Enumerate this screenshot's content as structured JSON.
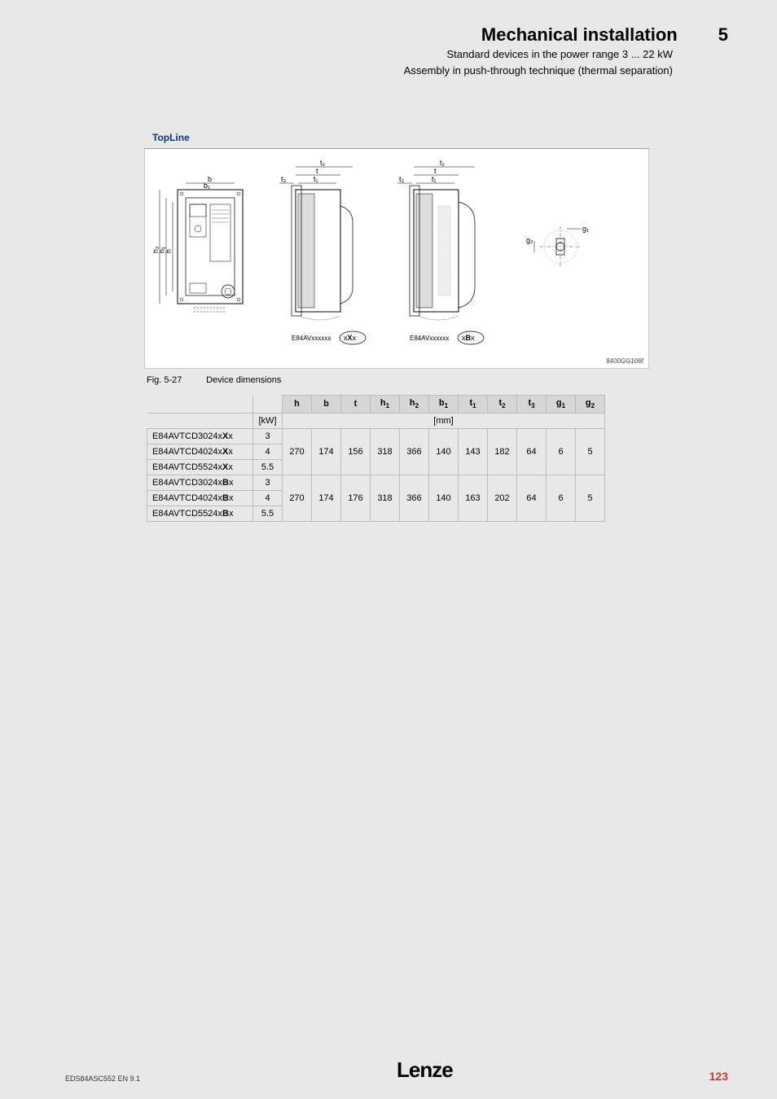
{
  "header": {
    "title": "Mechanical installation",
    "chapter": "5",
    "subtitle1": "Standard devices in the power range 3 ... 22 kW",
    "subtitle2": "Assembly in push-through technique (thermal separation)"
  },
  "diagram": {
    "title": "TopLine",
    "fig_id": "8400GG106f",
    "views": [
      {
        "label": "E84AVxxxxxx",
        "suffix": "xXx"
      },
      {
        "label": "E84AVxxxxxx",
        "suffix": "xBx"
      }
    ],
    "dims_shown": [
      "b",
      "b1",
      "h",
      "h1",
      "h2",
      "t",
      "t1",
      "t2",
      "t3",
      "g1",
      "g2"
    ]
  },
  "caption": {
    "label": "Fig. 5-27",
    "text": "Device dimensions"
  },
  "table": {
    "headers": [
      "h",
      "b",
      "t",
      "h1",
      "h2",
      "b1",
      "t1",
      "t2",
      "t3",
      "g1",
      "g2"
    ],
    "unit_col": "[kW]",
    "unit_row": "[mm]",
    "groups": [
      {
        "models": [
          {
            "name": "E84AVTCD3024x",
            "bold": "X",
            "suffix": "x",
            "kw": "3"
          },
          {
            "name": "E84AVTCD4024x",
            "bold": "X",
            "suffix": "x",
            "kw": "4"
          },
          {
            "name": "E84AVTCD5524x",
            "bold": "X",
            "suffix": "x",
            "kw": "5.5"
          }
        ],
        "values": [
          "270",
          "174",
          "156",
          "318",
          "366",
          "140",
          "143",
          "182",
          "64",
          "6",
          "5"
        ]
      },
      {
        "models": [
          {
            "name": "E84AVTCD3024x",
            "bold": "B",
            "suffix": "x",
            "kw": "3"
          },
          {
            "name": "E84AVTCD4024x",
            "bold": "B",
            "suffix": "x",
            "kw": "4"
          },
          {
            "name": "E84AVTCD5524x",
            "bold": "B",
            "suffix": "x",
            "kw": "5.5"
          }
        ],
        "values": [
          "270",
          "174",
          "176",
          "318",
          "366",
          "140",
          "163",
          "202",
          "64",
          "6",
          "5"
        ]
      }
    ]
  },
  "footer": {
    "doc": "EDS84ASC552  EN  9.1",
    "logo": "Lenze",
    "page": "123"
  },
  "colors": {
    "page_bg": "#e8e8e8",
    "title_blue": "#003a7a",
    "page_red": "#c04040",
    "table_header": "#d6d6d6"
  }
}
